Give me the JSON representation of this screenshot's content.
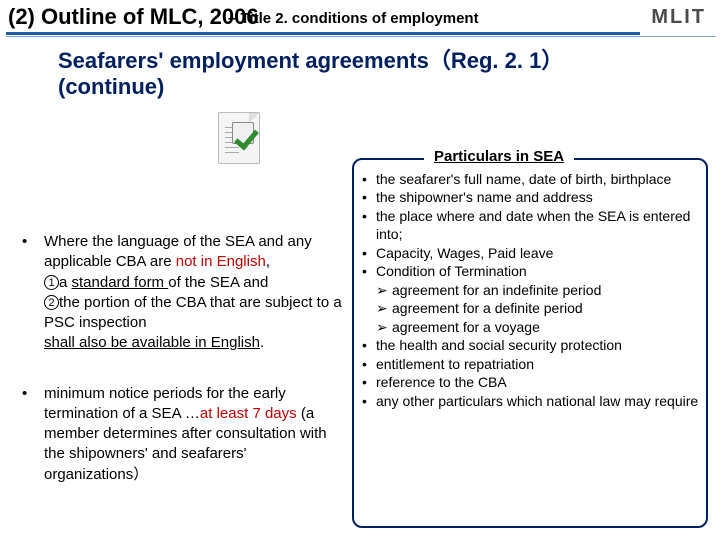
{
  "header": {
    "main": "(2) Outline of MLC, 2006",
    "sub": "– Title 2. conditions of employment",
    "logo": "MLIT"
  },
  "section": {
    "title_line1": "Seafarers' employment agreements（Reg. 2. 1）",
    "title_line2": "(continue)"
  },
  "left": {
    "b1_a": "Where the language of the SEA and any applicable CBA are ",
    "b1_b": "not in English",
    "b1_c": ",",
    "b1_d": "a ",
    "b1_e": "standard form ",
    "b1_f": "of the SEA and",
    "b1_g": "the portion of the CBA that are subject to a PSC inspection",
    "b1_h": "shall also be available in English",
    "b1_i": ".",
    "n1": "1",
    "n2": "2",
    "b2_a": "minimum notice periods for the early termination of a SEA …",
    "b2_b": "at least 7 days",
    "b2_c": " (a member determines after consultation with the shipowners' and seafarers' organizations）"
  },
  "particulars": {
    "title": "Particulars in SEA",
    "i1": "the seafarer's full name, date of birth,  birthplace",
    "i2": "the shipowner's name and address",
    "i3": "the place where and date when the SEA is entered into;",
    "i4": "Capacity, Wages, Paid leave",
    "i5": "Condition of Termination",
    "i5a": "agreement for an indefinite period",
    "i5b": "agreement for a definite period",
    "i5c": "agreement for a voyage",
    "i6": "the health and social security protection",
    "i7": "entitlement to repatriation",
    "i8": "reference to the CBA",
    "i9": "any other particulars which national law may require"
  },
  "colors": {
    "heading": "#002060",
    "red": "#c00000",
    "rule": "#1f5fa8"
  }
}
